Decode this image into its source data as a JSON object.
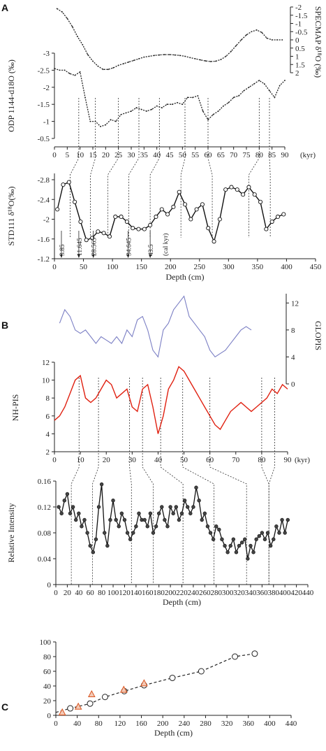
{
  "panels": {
    "A": "A",
    "B": "B",
    "C": "C"
  },
  "chart_data": [
    {
      "panel": "A-top",
      "type": "line",
      "x_axis": {
        "range": [
          0,
          90
        ],
        "ticks": [
          0,
          5,
          10,
          15,
          20,
          25,
          30,
          35,
          40,
          45,
          50,
          55,
          60,
          65,
          70,
          75,
          80,
          85,
          90
        ],
        "unit_label": "(kyr)"
      },
      "left_axis": {
        "label": "ODP 1144-d18O (‰)",
        "range": [
          -3,
          -0.5
        ],
        "reversed": true,
        "ticks": [
          -3,
          -2.5,
          -2,
          -1.5,
          -1,
          -0.5
        ]
      },
      "right_axis": {
        "label": "SPECMAP δ¹⁸O (‰)",
        "range": [
          -2,
          2
        ],
        "reversed": true,
        "ticks": [
          -2,
          -1.5,
          -1,
          -0.5,
          0,
          0.5,
          1,
          1.5,
          2
        ]
      },
      "series": [
        {
          "axis": "right",
          "color": "#222222",
          "x": [
            1,
            3,
            5,
            7,
            9,
            11,
            13,
            15,
            17,
            19,
            21,
            23,
            25,
            27,
            29,
            31,
            33,
            35,
            37,
            39,
            41,
            43,
            45,
            47,
            49,
            51,
            53,
            55,
            57,
            59,
            61,
            63,
            65,
            67,
            69,
            71,
            73,
            75,
            77,
            79,
            81,
            83,
            85,
            87,
            89
          ],
          "y": [
            -1.9,
            -1.7,
            -1.3,
            -0.8,
            -0.2,
            0.3,
            0.9,
            1.3,
            1.6,
            1.8,
            1.8,
            1.7,
            1.55,
            1.45,
            1.35,
            1.25,
            1.15,
            1.05,
            1.0,
            0.95,
            0.92,
            0.9,
            0.9,
            0.92,
            0.95,
            1.0,
            1.08,
            1.15,
            1.22,
            1.28,
            1.32,
            1.3,
            1.2,
            1.0,
            0.7,
            0.35,
            0.0,
            -0.3,
            -0.5,
            -0.6,
            -0.45,
            -0.1,
            0.0,
            0.0,
            0.0
          ]
        },
        {
          "axis": "left",
          "color": "#222222",
          "x": [
            0,
            2,
            4,
            6,
            8,
            10,
            12,
            14,
            16,
            18,
            20,
            22,
            24,
            26,
            28,
            30,
            32,
            34,
            36,
            38,
            40,
            42,
            44,
            46,
            48,
            50,
            52,
            54,
            56,
            58,
            60,
            62,
            64,
            66,
            68,
            70,
            72,
            74,
            76,
            78,
            80,
            82,
            84,
            86,
            88,
            90
          ],
          "y": [
            -2.55,
            -2.5,
            -2.5,
            -2.4,
            -2.35,
            -2.45,
            -1.7,
            -1.0,
            -1.0,
            -0.85,
            -0.9,
            -1.05,
            -1.0,
            -1.2,
            -1.25,
            -1.3,
            -1.4,
            -1.35,
            -1.3,
            -1.35,
            -1.45,
            -1.4,
            -1.5,
            -1.5,
            -1.55,
            -1.5,
            -1.7,
            -1.7,
            -1.75,
            -1.3,
            -1.05,
            -1.2,
            -1.3,
            -1.45,
            -1.55,
            -1.7,
            -1.75,
            -1.9,
            -2.0,
            -2.1,
            -2.2,
            -2.1,
            -1.9,
            -1.7,
            -2.05,
            -2.2
          ]
        }
      ],
      "tie_lines_kyr": [
        9.5,
        16,
        25,
        33,
        41,
        51,
        60,
        80,
        84
      ]
    },
    {
      "panel": "A-bottom",
      "type": "line",
      "x_axis": {
        "label": "Depth (cm)",
        "range": [
          0,
          450
        ],
        "ticks": [
          0,
          50,
          100,
          150,
          200,
          250,
          300,
          350,
          400,
          450
        ]
      },
      "y_axis": {
        "label": "STD111 δ¹⁸O(‰)",
        "range": [
          -2.8,
          -1.2
        ],
        "reversed": true,
        "ticks": [
          -2.8,
          -2.4,
          -2,
          -1.6,
          -1.2
        ]
      },
      "series": [
        {
          "color": "#111111",
          "marker": "circle",
          "x": [
            5,
            15,
            25,
            35,
            45,
            55,
            65,
            75,
            85,
            95,
            105,
            115,
            125,
            135,
            145,
            155,
            165,
            175,
            185,
            195,
            205,
            215,
            225,
            235,
            245,
            255,
            265,
            275,
            285,
            295,
            305,
            315,
            325,
            335,
            345,
            355,
            365,
            375,
            385,
            395
          ],
          "y": [
            -2.2,
            -2.7,
            -2.75,
            -2.35,
            -1.95,
            -1.58,
            -1.62,
            -1.75,
            -1.72,
            -1.65,
            -2.05,
            -2.05,
            -1.95,
            -1.82,
            -1.8,
            -1.8,
            -1.88,
            -2.05,
            -2.2,
            -2.1,
            -2.25,
            -2.55,
            -2.3,
            -2.0,
            -2.2,
            -2.3,
            -1.82,
            -1.55,
            -2.0,
            -2.6,
            -2.65,
            -2.6,
            -2.5,
            -2.65,
            -2.5,
            -2.35,
            -1.8,
            -1.95,
            -2.05,
            -2.1
          ]
        }
      ],
      "annotations": [
        {
          "text": "3.85",
          "depth": 12
        },
        {
          "text": "11.645",
          "depth": 42
        },
        {
          "text": "28.565",
          "depth": 67
        },
        {
          "text": "34.645",
          "depth": 127
        },
        {
          "text": "43.5",
          "depth": 165
        },
        {
          "text": "(cal kyr)",
          "depth": 190
        }
      ],
      "tie_lines_depth": [
        27,
        62,
        92,
        128,
        165,
        218,
        272,
        335,
        372
      ]
    },
    {
      "panel": "B-top",
      "type": "line",
      "x_axis": {
        "range": [
          0,
          90
        ],
        "ticks": [
          0,
          10,
          20,
          30,
          40,
          50,
          60,
          70,
          80,
          90
        ],
        "unit_label": "(kyr)"
      },
      "left_axis": {
        "label": "NH-PIS",
        "range": [
          2,
          12
        ],
        "ticks": [
          2,
          4,
          6,
          8,
          10,
          12
        ]
      },
      "right_axis": {
        "label": "GLOPIS",
        "range": [
          0,
          14
        ],
        "ticks": [
          0,
          4,
          8,
          12
        ]
      },
      "series": [
        {
          "name": "GLOPIS",
          "axis": "right",
          "color": "#7b7fc4",
          "x": [
            2,
            4,
            6,
            8,
            10,
            12,
            14,
            16,
            18,
            20,
            22,
            24,
            26,
            28,
            30,
            32,
            34,
            36,
            38,
            40,
            42,
            44,
            46,
            48,
            50,
            52,
            54,
            56,
            58,
            60,
            62,
            64,
            66,
            68,
            70,
            72,
            74,
            76
          ],
          "y": [
            9,
            11,
            10,
            8,
            7.5,
            8,
            7,
            6,
            7,
            6.5,
            6,
            7,
            6,
            8,
            7,
            9.5,
            10,
            8,
            5,
            4,
            8,
            9,
            11,
            12,
            13,
            10,
            9,
            8,
            7,
            5,
            4,
            4.5,
            5,
            6,
            7,
            8,
            8.5,
            8
          ]
        },
        {
          "name": "NH-PIS",
          "axis": "left",
          "color": "#e02010",
          "x": [
            0,
            2,
            4,
            6,
            8,
            10,
            12,
            14,
            16,
            18,
            20,
            22,
            24,
            26,
            28,
            30,
            32,
            34,
            36,
            38,
            40,
            42,
            44,
            46,
            48,
            50,
            52,
            54,
            56,
            58,
            60,
            62,
            64,
            66,
            68,
            70,
            72,
            74,
            76,
            78,
            80,
            82,
            84,
            86,
            88,
            90
          ],
          "y": [
            5.5,
            6,
            7,
            8.5,
            10,
            10.5,
            8,
            7.5,
            8,
            9,
            10,
            9.5,
            8,
            8.5,
            9,
            7,
            6.5,
            9,
            9.5,
            7,
            4,
            6,
            9,
            10,
            11.5,
            11,
            10,
            9,
            8,
            7,
            6,
            5,
            4.5,
            5.5,
            6.5,
            7,
            7.5,
            7,
            6.5,
            7,
            7.5,
            8,
            9,
            8.5,
            9.5,
            9
          ]
        }
      ],
      "tie_lines_kyr": [
        9.5,
        17,
        29,
        34,
        41,
        49.5,
        60,
        80,
        85
      ]
    },
    {
      "panel": "B-bottom",
      "type": "line",
      "x_axis": {
        "label": "Depth (cm)",
        "range": [
          0,
          440
        ],
        "ticks": [
          0,
          20,
          40,
          60,
          80,
          100,
          120,
          140,
          160,
          180,
          200,
          220,
          240,
          260,
          280,
          300,
          320,
          340,
          360,
          380,
          400,
          420,
          440
        ]
      },
      "y_axis": {
        "label": "Relative Intensity",
        "range": [
          0,
          0.16
        ],
        "ticks": [
          0,
          0.04,
          0.08,
          0.12,
          0.16
        ]
      },
      "series": [
        {
          "color": "#111111",
          "marker": "circle",
          "x": [
            5,
            10,
            15,
            20,
            25,
            30,
            35,
            40,
            45,
            50,
            55,
            60,
            65,
            70,
            75,
            80,
            85,
            90,
            95,
            100,
            105,
            110,
            115,
            120,
            125,
            130,
            135,
            140,
            145,
            150,
            155,
            160,
            165,
            170,
            175,
            180,
            185,
            190,
            195,
            200,
            205,
            210,
            215,
            220,
            225,
            230,
            235,
            240,
            245,
            250,
            255,
            260,
            265,
            270,
            275,
            280,
            285,
            290,
            295,
            300,
            305,
            310,
            315,
            320,
            325,
            330,
            335,
            340,
            345,
            350,
            355,
            360,
            365,
            370,
            375,
            380,
            385,
            390,
            395,
            400,
            405
          ],
          "y": [
            0.12,
            0.11,
            0.13,
            0.14,
            0.11,
            0.12,
            0.1,
            0.11,
            0.09,
            0.1,
            0.08,
            0.06,
            0.05,
            0.07,
            0.12,
            0.155,
            0.08,
            0.06,
            0.1,
            0.13,
            0.1,
            0.09,
            0.11,
            0.1,
            0.08,
            0.07,
            0.08,
            0.09,
            0.11,
            0.1,
            0.1,
            0.09,
            0.11,
            0.08,
            0.09,
            0.11,
            0.12,
            0.1,
            0.09,
            0.12,
            0.11,
            0.12,
            0.1,
            0.11,
            0.13,
            0.12,
            0.11,
            0.12,
            0.15,
            0.13,
            0.1,
            0.11,
            0.09,
            0.08,
            0.07,
            0.09,
            0.085,
            0.07,
            0.06,
            0.05,
            0.06,
            0.07,
            0.05,
            0.06,
            0.065,
            0.07,
            0.04,
            0.06,
            0.05,
            0.07,
            0.075,
            0.08,
            0.07,
            0.08,
            0.06,
            0.07,
            0.09,
            0.08,
            0.1,
            0.08,
            0.1
          ]
        }
      ],
      "tie_lines_depth": [
        27,
        64,
        132,
        170,
        222,
        276,
        333,
        372
      ]
    },
    {
      "panel": "C",
      "type": "scatter",
      "x_axis": {
        "label": "Depth (cm)",
        "range": [
          0,
          440
        ],
        "ticks": [
          0,
          40,
          80,
          120,
          160,
          200,
          240,
          280,
          320,
          360,
          400,
          440
        ]
      },
      "y_axis": {
        "range": [
          0,
          100
        ],
        "ticks": [
          0,
          20,
          40,
          60,
          80,
          100
        ]
      },
      "series": [
        {
          "marker": "circle",
          "color": "#222222",
          "x": [
            27,
            64,
            92,
            128,
            165,
            218,
            272,
            335,
            372
          ],
          "y": [
            9.5,
            16,
            25,
            33,
            41,
            51,
            60,
            80,
            84
          ]
        },
        {
          "marker": "triangle",
          "color": "#d9541e",
          "x": [
            12,
            42,
            67,
            127,
            165
          ],
          "y": [
            3.85,
            11.645,
            28.565,
            34.645,
            43.5
          ]
        }
      ],
      "fit_line": {
        "style": "dashed"
      }
    }
  ]
}
